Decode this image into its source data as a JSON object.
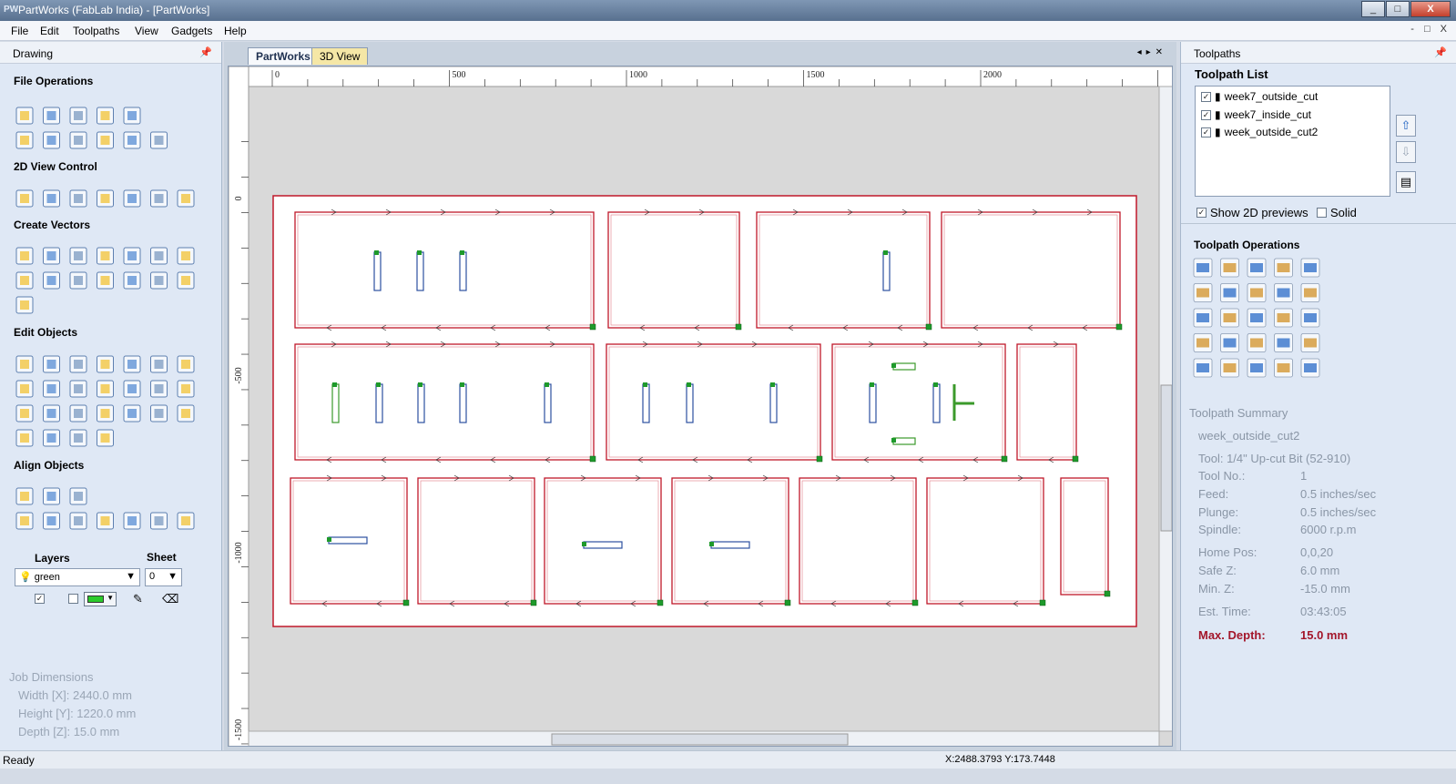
{
  "window": {
    "logo": "PW",
    "title": "PartWorks (FabLab India) - [PartWorks]",
    "min": "_",
    "max": "□",
    "close": "X"
  },
  "menu": [
    "File",
    "Edit",
    "Toolpaths",
    "View",
    "Gadgets",
    "Help"
  ],
  "mdi_controls": "- □ X",
  "left_panel": {
    "title": "Drawing",
    "sections": {
      "file_ops": "File Operations",
      "view_ctrl": "2D View Control",
      "create_vec": "Create Vectors",
      "edit_obj": "Edit Objects",
      "align_obj": "Align Objects"
    },
    "layers_label": "Layers",
    "sheet_label": "Sheet",
    "layer_value": "green",
    "sheet_value": "0",
    "job": {
      "title": "Job Dimensions",
      "width": "Width  [X]: 2440.0 mm",
      "height": "Height [Y]: 1220.0 mm",
      "depth": "Depth  [Z]: 15.0 mm"
    }
  },
  "tabs": {
    "active": "PartWorks",
    "inactive": "3D View"
  },
  "ruler": {
    "h_ticks": [
      "0",
      "500",
      "1000",
      "1500",
      "2000"
    ],
    "v_ticks": [
      "0",
      "-500",
      "-1000",
      "-1500"
    ]
  },
  "right_panel": {
    "title": "Toolpaths",
    "list_title": "Toolpath List",
    "items": [
      {
        "name": "week7_outside_cut",
        "checked": true
      },
      {
        "name": "week7_inside_cut",
        "checked": true
      },
      {
        "name": "week_outside_cut2",
        "checked": true
      }
    ],
    "show_previews": "Show 2D previews",
    "solid": "Solid",
    "ops_title": "Toolpath Operations",
    "summary": {
      "title": "Toolpath Summary",
      "name": "week_outside_cut2",
      "tool": "Tool:  1/4\" Up-cut Bit (52-910)",
      "rows": [
        {
          "k": "Tool No.:",
          "v": "1"
        },
        {
          "k": "Feed:",
          "v": "0.5 inches/sec"
        },
        {
          "k": "Plunge:",
          "v": "0.5 inches/sec"
        },
        {
          "k": "Spindle:",
          "v": "6000 r.p.m"
        },
        {
          "k": "Home Pos:",
          "v": "0,0,20"
        },
        {
          "k": "Safe Z:",
          "v": "6.0 mm"
        },
        {
          "k": "Min. Z:",
          "v": "-15.0 mm"
        },
        {
          "k": "Est. Time:",
          "v": "03:43:05"
        }
      ],
      "max_depth_label": "Max. Depth:",
      "max_depth_value": "15.0 mm"
    }
  },
  "status": {
    "left": "Ready",
    "coords": "X:2488.3793 Y:173.7448"
  },
  "colors": {
    "vector_red": "#c0182a",
    "inner_blue": "#2c4fa0",
    "inner_green": "#3b9a2b",
    "node": "#1e9a2b"
  }
}
